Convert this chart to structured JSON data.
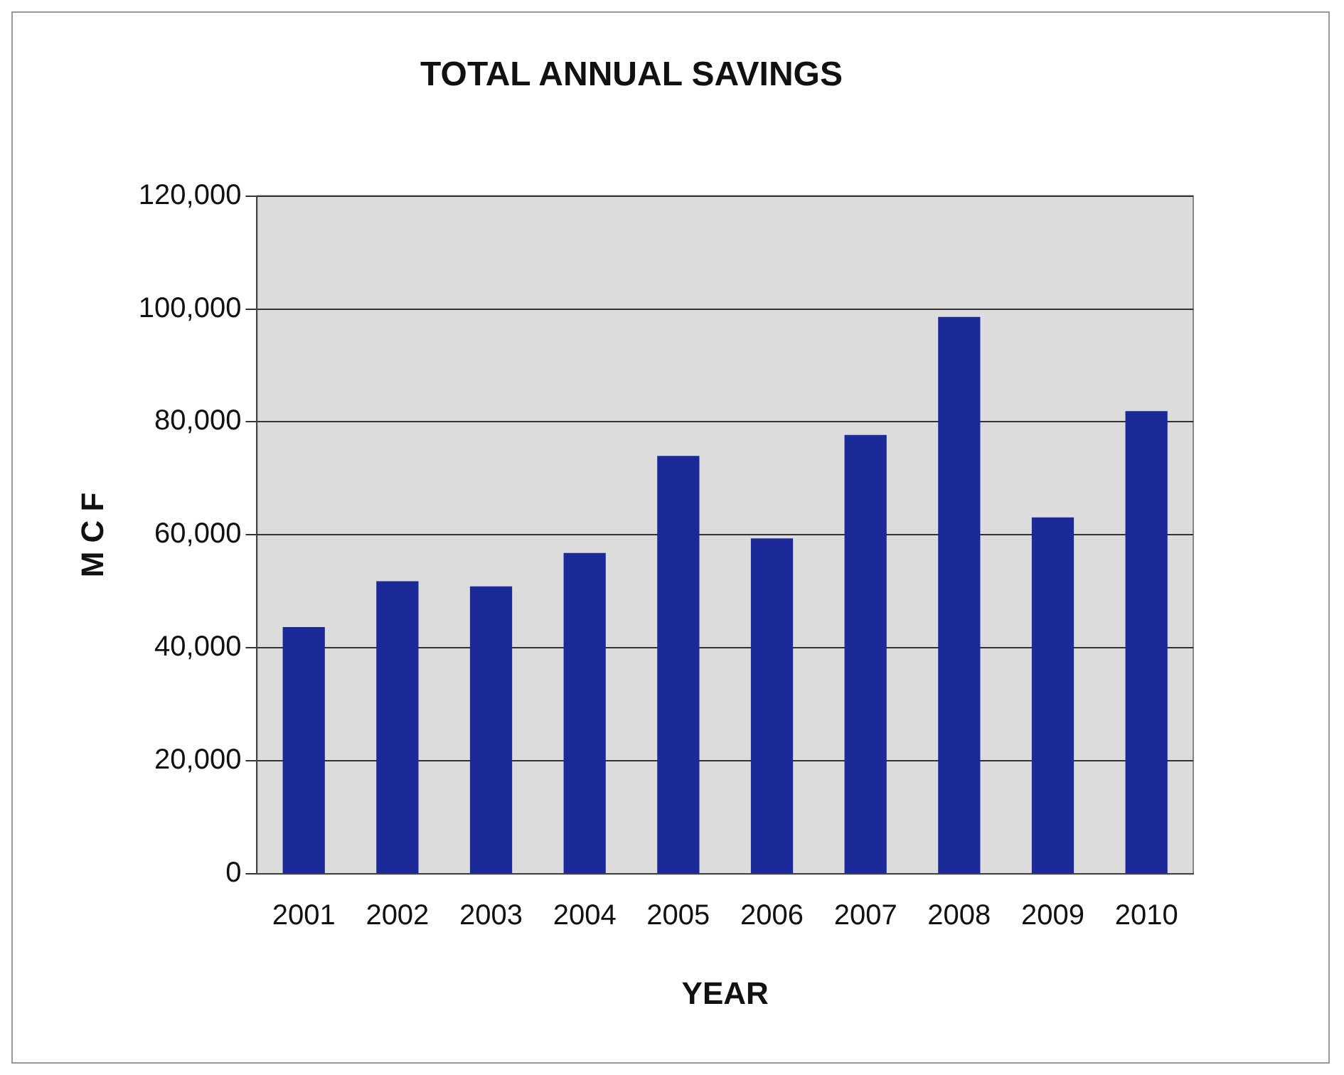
{
  "chart_data": {
    "type": "bar",
    "title": "TOTAL ANNUAL SAVINGS",
    "xlabel": "YEAR",
    "ylabel": "M C F",
    "categories": [
      "2001",
      "2002",
      "2003",
      "2004",
      "2005",
      "2006",
      "2007",
      "2008",
      "2009",
      "2010"
    ],
    "values": [
      43700,
      51800,
      50900,
      56800,
      74000,
      59400,
      77700,
      98600,
      63100,
      81900
    ],
    "color": "#1c2a99",
    "ylim": [
      0,
      120000
    ],
    "yticks": [
      0,
      {
        "value": 20000,
        "label": "20,000"
      },
      {
        "value": 40000,
        "label": "40,000"
      },
      {
        "value": 60000,
        "label": "60,000"
      },
      {
        "value": 80000,
        "label": "80,000"
      },
      {
        "value": 100000,
        "label": "100,000"
      },
      {
        "value": 120000,
        "label": "120,000"
      }
    ],
    "grid": "y",
    "legend": false
  }
}
